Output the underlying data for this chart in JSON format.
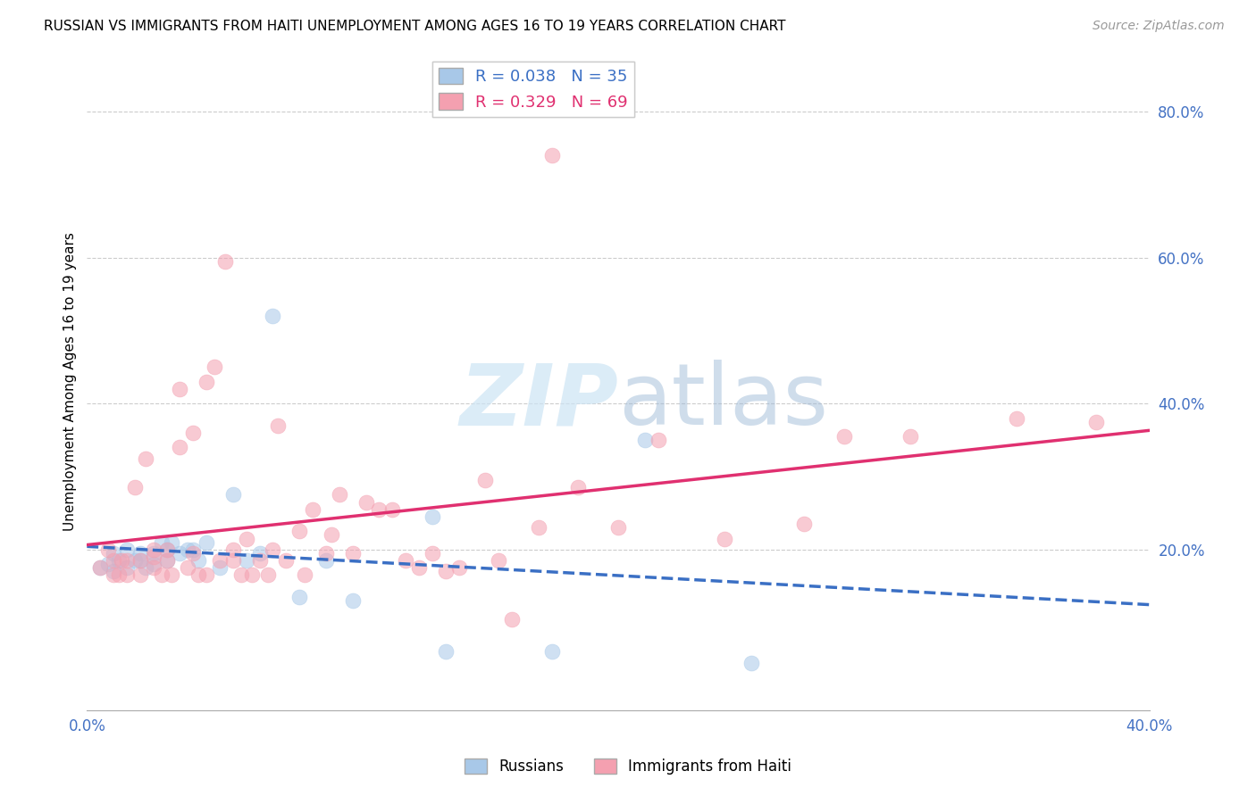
{
  "title": "RUSSIAN VS IMMIGRANTS FROM HAITI UNEMPLOYMENT AMONG AGES 16 TO 19 YEARS CORRELATION CHART",
  "source": "Source: ZipAtlas.com",
  "ylabel": "Unemployment Among Ages 16 to 19 years",
  "right_yticks": [
    "20.0%",
    "40.0%",
    "60.0%",
    "80.0%"
  ],
  "right_ytick_vals": [
    0.2,
    0.4,
    0.6,
    0.8
  ],
  "xmin": 0.0,
  "xmax": 0.4,
  "ymin": -0.02,
  "ymax": 0.88,
  "color_russian": "#a8c8e8",
  "color_haiti": "#f4a0b0",
  "trendline_russian_color": "#3a6fc4",
  "trendline_haiti_color": "#e03070",
  "R_russian": 0.038,
  "N_russian": 35,
  "R_haiti": 0.329,
  "N_haiti": 69,
  "russians_x": [
    0.005,
    0.008,
    0.01,
    0.01,
    0.012,
    0.015,
    0.015,
    0.018,
    0.02,
    0.02,
    0.022,
    0.025,
    0.025,
    0.028,
    0.03,
    0.03,
    0.032,
    0.035,
    0.038,
    0.04,
    0.042,
    0.045,
    0.05,
    0.055,
    0.06,
    0.065,
    0.07,
    0.08,
    0.09,
    0.1,
    0.13,
    0.135,
    0.175,
    0.21,
    0.25
  ],
  "russians_y": [
    0.175,
    0.18,
    0.17,
    0.195,
    0.185,
    0.175,
    0.2,
    0.185,
    0.185,
    0.195,
    0.175,
    0.18,
    0.195,
    0.21,
    0.185,
    0.2,
    0.21,
    0.195,
    0.2,
    0.2,
    0.185,
    0.21,
    0.175,
    0.275,
    0.185,
    0.195,
    0.52,
    0.135,
    0.185,
    0.13,
    0.245,
    0.06,
    0.06,
    0.35,
    0.045
  ],
  "haiti_x": [
    0.005,
    0.008,
    0.01,
    0.01,
    0.012,
    0.013,
    0.015,
    0.015,
    0.018,
    0.02,
    0.02,
    0.022,
    0.025,
    0.025,
    0.025,
    0.028,
    0.03,
    0.03,
    0.032,
    0.035,
    0.035,
    0.038,
    0.04,
    0.04,
    0.042,
    0.045,
    0.045,
    0.048,
    0.05,
    0.052,
    0.055,
    0.055,
    0.058,
    0.06,
    0.062,
    0.065,
    0.068,
    0.07,
    0.072,
    0.075,
    0.08,
    0.082,
    0.085,
    0.09,
    0.092,
    0.095,
    0.1,
    0.105,
    0.11,
    0.115,
    0.12,
    0.125,
    0.13,
    0.135,
    0.14,
    0.15,
    0.155,
    0.16,
    0.17,
    0.175,
    0.185,
    0.2,
    0.215,
    0.24,
    0.27,
    0.285,
    0.31,
    0.35,
    0.38
  ],
  "haiti_y": [
    0.175,
    0.2,
    0.165,
    0.185,
    0.165,
    0.185,
    0.165,
    0.185,
    0.285,
    0.165,
    0.185,
    0.325,
    0.175,
    0.19,
    0.2,
    0.165,
    0.185,
    0.2,
    0.165,
    0.34,
    0.42,
    0.175,
    0.195,
    0.36,
    0.165,
    0.165,
    0.43,
    0.45,
    0.185,
    0.595,
    0.2,
    0.185,
    0.165,
    0.215,
    0.165,
    0.185,
    0.165,
    0.2,
    0.37,
    0.185,
    0.225,
    0.165,
    0.255,
    0.195,
    0.22,
    0.275,
    0.195,
    0.265,
    0.255,
    0.255,
    0.185,
    0.175,
    0.195,
    0.17,
    0.175,
    0.295,
    0.185,
    0.105,
    0.23,
    0.74,
    0.285,
    0.23,
    0.35,
    0.215,
    0.235,
    0.355,
    0.355,
    0.38,
    0.375
  ]
}
